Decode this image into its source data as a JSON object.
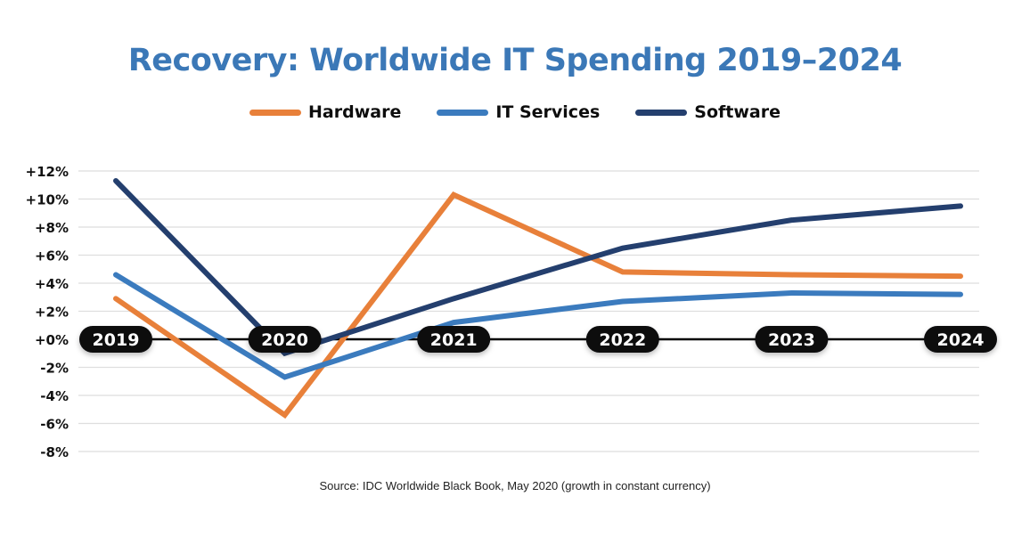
{
  "chart_data": {
    "type": "line",
    "title": "Recovery: Worldwide IT Spending 2019–2024",
    "xlabel": "",
    "ylabel": "",
    "categories": [
      "2019",
      "2020",
      "2021",
      "2022",
      "2023",
      "2024"
    ],
    "yticks": [
      "+12%",
      "+10%",
      "+8%",
      "+6%",
      "+4%",
      "+2%",
      "+0%",
      "-2%",
      "-4%",
      "-6%",
      "-8%"
    ],
    "ytick_values": [
      12,
      10,
      8,
      6,
      4,
      2,
      0,
      -2,
      -4,
      -6,
      -8
    ],
    "ylim": [
      -8,
      12
    ],
    "grid": true,
    "legend_position": "top-center",
    "series": [
      {
        "name": "Hardware",
        "color": "#E8803A",
        "values": [
          2.9,
          -5.4,
          10.3,
          4.8,
          4.6,
          4.5
        ]
      },
      {
        "name": "IT Services",
        "color": "#3B7BBE",
        "values": [
          4.6,
          -2.7,
          1.2,
          2.7,
          3.3,
          3.2
        ]
      },
      {
        "name": "Software",
        "color": "#243F6E",
        "values": [
          11.3,
          -1.0,
          2.9,
          6.5,
          8.5,
          9.5
        ]
      }
    ],
    "source": "Source: IDC Worldwide Black Book, May 2020 (growth in constant currency)"
  }
}
